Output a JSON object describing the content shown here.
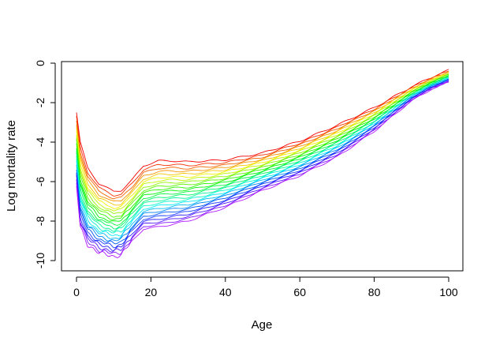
{
  "chart_data": {
    "type": "line",
    "title": "",
    "xlabel": "Age",
    "ylabel": "Log mortality rate",
    "xlim": [
      -4,
      104
    ],
    "ylim": [
      -10.6,
      0.1
    ],
    "x_ticks": [
      0,
      20,
      40,
      60,
      80,
      100
    ],
    "y_ticks": [
      0,
      -2,
      -4,
      -6,
      -8,
      -10
    ],
    "grid": false,
    "legend": "none",
    "palette": "rainbow, first series red through last series violet",
    "series_count": 24,
    "series_template": {
      "description": "Each curve runs ages 0-100; values interpolate from the first (red) curve to the last (violet) curve.",
      "ages": [
        0,
        1,
        3,
        6,
        10,
        12,
        15,
        18,
        22,
        26,
        30,
        40,
        50,
        60,
        70,
        80,
        90,
        95,
        100
      ],
      "first_series_values": [
        -2.5,
        -4.0,
        -5.3,
        -6.1,
        -6.5,
        -6.45,
        -5.9,
        -5.2,
        -4.95,
        -4.95,
        -5.0,
        -4.9,
        -4.55,
        -3.95,
        -3.15,
        -2.25,
        -1.2,
        -0.75,
        -0.35
      ],
      "last_series_values": [
        -6.2,
        -8.3,
        -9.2,
        -9.6,
        -9.8,
        -9.7,
        -9.0,
        -8.4,
        -8.3,
        -8.15,
        -8.0,
        -7.3,
        -6.45,
        -5.7,
        -4.75,
        -3.45,
        -1.9,
        -1.35,
        -0.95
      ]
    }
  }
}
